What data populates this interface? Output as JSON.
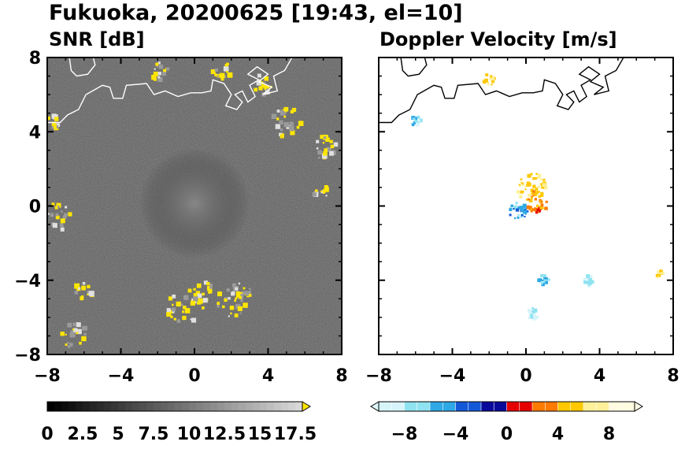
{
  "title": "Fukuoka, 20200625 [19:43, el=10]",
  "chart_data": [
    {
      "type": "heatmap",
      "title": "SNR [dB]",
      "xlim": [
        -8,
        8
      ],
      "ylim": [
        -8,
        8
      ],
      "xticks": [
        "−8",
        "−4",
        "0",
        "4",
        "8"
      ],
      "yticks": [
        "8",
        "4",
        "0",
        "−4",
        "−8"
      ],
      "background": "#1c1c1c",
      "echo_color": "#ffe600",
      "echo_regions": [
        {
          "x": -7.5,
          "y": 4.5,
          "r": 0.5
        },
        {
          "x": -7.4,
          "y": -0.5,
          "r": 0.8
        },
        {
          "x": -6.0,
          "y": -4.6,
          "r": 0.5
        },
        {
          "x": -6.5,
          "y": -7.0,
          "r": 0.7
        },
        {
          "x": -2.0,
          "y": 7.3,
          "r": 0.6
        },
        {
          "x": 1.5,
          "y": 7.3,
          "r": 0.5
        },
        {
          "x": 3.8,
          "y": 6.5,
          "r": 0.6
        },
        {
          "x": 5.0,
          "y": 4.5,
          "r": 0.8
        },
        {
          "x": 7.0,
          "y": 3.2,
          "r": 0.7
        },
        {
          "x": 6.9,
          "y": 0.8,
          "r": 0.5
        },
        {
          "x": 0.5,
          "y": -4.5,
          "r": 0.6
        },
        {
          "x": 2.5,
          "y": -4.6,
          "r": 0.6
        },
        {
          "x": -0.5,
          "y": -5.5,
          "r": 1.0
        },
        {
          "x": 2.0,
          "y": -5.2,
          "r": 0.8
        }
      ],
      "colorbar": {
        "ticks": [
          "0",
          "2.5",
          "5",
          "7.5",
          "10",
          "12.5",
          "15",
          "17.5"
        ],
        "range": [
          0,
          18
        ],
        "colors": [
          "#000000",
          "#d7d7d7"
        ],
        "extend_color": "#ffe600"
      }
    },
    {
      "type": "heatmap",
      "title": "Doppler Velocity [m/s]",
      "xlim": [
        -8,
        8
      ],
      "ylim": [
        -8,
        8
      ],
      "xticks": [
        "−8",
        "−4",
        "0",
        "4",
        "8"
      ],
      "yticks": [],
      "background": "#ffffff",
      "echo_regions": [
        {
          "x": 0.3,
          "y": 1.0,
          "r": 0.8,
          "v": 6
        },
        {
          "x": 0.6,
          "y": 0.2,
          "r": 0.6,
          "v": 3
        },
        {
          "x": -0.4,
          "y": -0.3,
          "r": 0.5,
          "v": -5
        },
        {
          "x": -6.0,
          "y": 4.6,
          "r": 0.3,
          "v": -7
        },
        {
          "x": -2.0,
          "y": 6.8,
          "r": 0.3,
          "v": 6
        },
        {
          "x": 3.4,
          "y": -4.0,
          "r": 0.3,
          "v": -8
        },
        {
          "x": 1.0,
          "y": -4.0,
          "r": 0.3,
          "v": -6
        },
        {
          "x": 0.4,
          "y": -5.8,
          "r": 0.3,
          "v": -8
        },
        {
          "x": 7.3,
          "y": -3.7,
          "r": 0.2,
          "v": 6
        }
      ],
      "colorbar": {
        "ticks": [
          "−8",
          "−4",
          "0",
          "4",
          "8"
        ],
        "range": [
          -10,
          10
        ],
        "colors": [
          "#d7f4fb",
          "#8fe3f0",
          "#2fa8e6",
          "#1458d8",
          "#0a0a9a",
          "#e60000",
          "#ff7a00",
          "#ffc800",
          "#fff09a",
          "#fffbe0"
        ],
        "extend_left_color": "#dff7fb",
        "extend_right_color": "#fffbe6"
      }
    }
  ]
}
